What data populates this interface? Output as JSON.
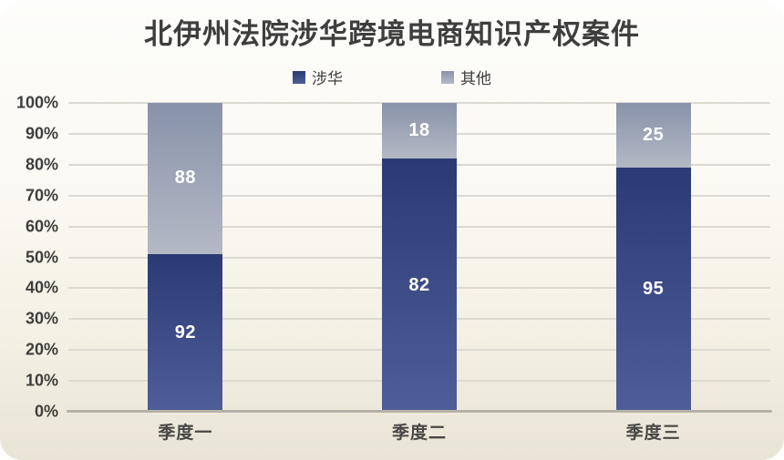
{
  "title": "北伊州法院涉华跨境电商知识产权案件",
  "legend": {
    "items": [
      {
        "label": "涉华"
      },
      {
        "label": "其他"
      }
    ]
  },
  "colors": {
    "series_shehua_top": "#2b3a74",
    "series_shehua_bottom": "#4f5e99",
    "series_qita_top": "#8892a9",
    "series_qita_bottom": "#b4b9c5",
    "card_bg_top": "#fdfdfb",
    "card_bg_bottom": "#e9e4d5",
    "gridline": "#dcd9d1",
    "axis_line": "#b5b1a7",
    "text": "#3e3e3e",
    "value_label": "#ffffff"
  },
  "chart_data": {
    "type": "bar",
    "subtype": "stacked-100-percent-column",
    "title": "北伊州法院涉华跨境电商知识产权案件",
    "categories": [
      "季度一",
      "季度二",
      "季度三"
    ],
    "series": [
      {
        "name": "涉华",
        "values": [
          92,
          82,
          95
        ],
        "color_top": "#2b3a74",
        "color_bottom": "#4f5e99"
      },
      {
        "name": "其他",
        "values": [
          88,
          18,
          25
        ],
        "color_top": "#8892a9",
        "color_bottom": "#b4b9c5"
      }
    ],
    "computed_percentages": {
      "涉华": [
        51.1,
        82.0,
        79.2
      ],
      "其他": [
        48.9,
        18.0,
        20.8
      ]
    },
    "value_labels_shown": true,
    "xlabel": "",
    "ylabel": "",
    "y_axis": {
      "min": 0,
      "max": 100,
      "unit": "percent",
      "tick_step": 10,
      "tick_labels": [
        "0%",
        "10%",
        "20%",
        "30%",
        "40%",
        "50%",
        "60%",
        "70%",
        "80%",
        "90%",
        "100%"
      ]
    },
    "grid": true,
    "legend_position": "top"
  }
}
